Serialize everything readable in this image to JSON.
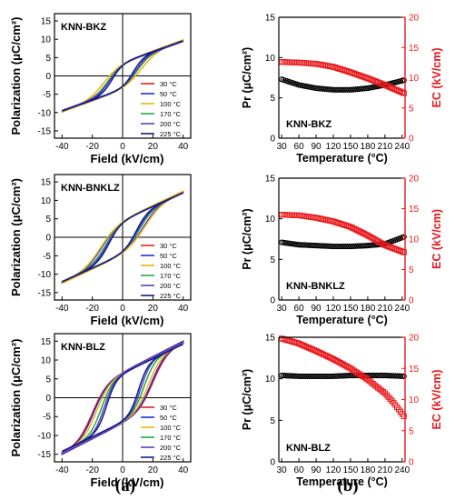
{
  "figure": {
    "panel_labels": [
      "(a)",
      "(b)"
    ]
  },
  "chart_data": [
    {
      "type": "line",
      "panel": "a",
      "row": 0,
      "annotation": "KNN-BKZ",
      "xlabel": "Field (kV/cm)",
      "ylabel": "Polarization (μC/cm²)",
      "xlim": [
        -45,
        45
      ],
      "ylim": [
        -17,
        17
      ],
      "xticks": [
        -40,
        -20,
        0,
        20,
        40
      ],
      "yticks": [
        -15,
        -10,
        -5,
        0,
        5,
        10,
        15
      ],
      "legend_position": "bottom-right",
      "curve_shape": {
        "tilt": 0.04,
        "hard": 0.65
      },
      "series": [
        {
          "name": "30 °C",
          "color": "#e02020",
          "Ps": 7.4,
          "Ec": 9.0,
          "Pmax": 9.7
        },
        {
          "name": "50 °C",
          "color": "#2a2ad0",
          "Ps": 7.5,
          "Ec": 8.6,
          "Pmax": 9.8
        },
        {
          "name": "100 °C",
          "color": "#f0b400",
          "Ps": 7.2,
          "Ec": 12.3,
          "Pmax": 9.8
        },
        {
          "name": "170 °C",
          "color": "#27a845",
          "Ps": 6.5,
          "Ec": 9.5,
          "Pmax": 9.5
        },
        {
          "name": "200 °C",
          "color": "#5a3fc0",
          "Ps": 6.3,
          "Ec": 8.5,
          "Pmax": 9.4
        },
        {
          "name": "225 °C",
          "color": "#101c8a",
          "Ps": 6.4,
          "Ec": 7.0,
          "Pmax": 9.6
        }
      ]
    },
    {
      "type": "line",
      "panel": "a",
      "row": 1,
      "annotation": "KNN-BNKLZ",
      "xlabel": "Field (kV/cm)",
      "ylabel": "Polarization (μC/cm²)",
      "xlim": [
        -45,
        45
      ],
      "ylim": [
        -17,
        17
      ],
      "xticks": [
        -40,
        -20,
        0,
        20,
        40
      ],
      "yticks": [
        -15,
        -10,
        -5,
        0,
        5,
        10,
        15
      ],
      "legend_position": "bottom-right",
      "curve_shape": {
        "tilt": 0.04,
        "hard": 0.6
      },
      "series": [
        {
          "name": "30 °C",
          "color": "#e02020",
          "Ps": 7.8,
          "Ec": 14.0,
          "Pmax": 12.3
        },
        {
          "name": "50 °C",
          "color": "#2a2ad0",
          "Ps": 7.8,
          "Ec": 13.5,
          "Pmax": 12.3
        },
        {
          "name": "100 °C",
          "color": "#f0b400",
          "Ps": 7.6,
          "Ec": 14.5,
          "Pmax": 12.4
        },
        {
          "name": "170 °C",
          "color": "#27a845",
          "Ps": 7.2,
          "Ec": 11.0,
          "Pmax": 12.0
        },
        {
          "name": "200 °C",
          "color": "#5a3fc0",
          "Ps": 7.0,
          "Ec": 10.0,
          "Pmax": 12.0
        },
        {
          "name": "225 °C",
          "color": "#101c8a",
          "Ps": 7.2,
          "Ec": 9.0,
          "Pmax": 12.1
        }
      ]
    },
    {
      "type": "line",
      "panel": "a",
      "row": 2,
      "annotation": "KNN-BLZ",
      "xlabel": "Field (kV/cm)",
      "ylabel": "Polarization (μC/cm²)",
      "xlim": [
        -45,
        45
      ],
      "ylim": [
        -17,
        17
      ],
      "xticks": [
        -40,
        -20,
        0,
        20,
        40
      ],
      "yticks": [
        -15,
        -10,
        -5,
        0,
        5,
        10,
        15
      ],
      "legend_position": "bottom-right",
      "curve_shape": {
        "tilt": 0.03,
        "hard": 0.35
      },
      "series": [
        {
          "name": "30 °C",
          "color": "#e02020",
          "Ps": 10.5,
          "Ec": 20.0,
          "Pmax": 14.8
        },
        {
          "name": "50 °C",
          "color": "#2a2ad0",
          "Ps": 10.4,
          "Ec": 19.0,
          "Pmax": 14.8
        },
        {
          "name": "100 °C",
          "color": "#f0b400",
          "Ps": 10.5,
          "Ec": 17.0,
          "Pmax": 14.6
        },
        {
          "name": "170 °C",
          "color": "#27a845",
          "Ps": 10.3,
          "Ec": 14.0,
          "Pmax": 14.5
        },
        {
          "name": "200 °C",
          "color": "#5a3fc0",
          "Ps": 10.5,
          "Ec": 12.0,
          "Pmax": 14.6
        },
        {
          "name": "225 °C",
          "color": "#101c8a",
          "Ps": 10.2,
          "Ec": 10.5,
          "Pmax": 14.2
        }
      ]
    },
    {
      "type": "scatter",
      "panel": "b",
      "row": 0,
      "annotation": "KNN-BKZ",
      "xlabel": "Temperature (°C)",
      "ylabel_left": "Pr (μC/cm²)",
      "ylabel_right": "EC (kV/cm)",
      "xlim": [
        25,
        245
      ],
      "xticks": [
        30,
        60,
        90,
        120,
        150,
        180,
        210,
        240
      ],
      "ylim_left": [
        0,
        15
      ],
      "yticks_left": [
        0,
        5,
        10,
        15
      ],
      "ylim_right": [
        0,
        20
      ],
      "yticks_right": [
        0,
        5,
        10,
        15,
        20
      ],
      "x_start": 30,
      "x_end": 244,
      "x_step": 3,
      "series": [
        {
          "name": "Pr",
          "axis": "left",
          "color": "#000000",
          "marker": "circle",
          "x": [
            30,
            60,
            90,
            120,
            150,
            180,
            210,
            244
          ],
          "values": [
            7.3,
            6.6,
            6.2,
            6.0,
            6.0,
            6.2,
            6.6,
            7.2
          ]
        },
        {
          "name": "EC",
          "axis": "right",
          "color": "#e8191c",
          "marker": "square",
          "x": [
            30,
            60,
            90,
            120,
            150,
            180,
            210,
            244
          ],
          "values": [
            12.6,
            12.5,
            12.3,
            11.8,
            10.9,
            9.9,
            8.8,
            7.4
          ]
        }
      ]
    },
    {
      "type": "scatter",
      "panel": "b",
      "row": 1,
      "annotation": "KNN-BNKLZ",
      "xlabel": "Temperature (°C)",
      "ylabel_left": "Pr (μC/cm²)",
      "ylabel_right": "EC (kV/cm)",
      "xlim": [
        25,
        245
      ],
      "xticks": [
        30,
        60,
        90,
        120,
        150,
        180,
        210,
        240
      ],
      "ylim_left": [
        0,
        15
      ],
      "yticks_left": [
        0,
        5,
        10,
        15
      ],
      "ylim_right": [
        0,
        20
      ],
      "yticks_right": [
        0,
        5,
        10,
        15,
        20
      ],
      "x_start": 30,
      "x_end": 244,
      "x_step": 3,
      "series": [
        {
          "name": "Pr",
          "axis": "left",
          "color": "#000000",
          "marker": "circle",
          "x": [
            30,
            60,
            90,
            120,
            150,
            180,
            210,
            244
          ],
          "values": [
            7.1,
            6.8,
            6.7,
            6.6,
            6.6,
            6.7,
            6.9,
            7.8
          ]
        },
        {
          "name": "EC",
          "axis": "right",
          "color": "#e8191c",
          "marker": "square",
          "x": [
            30,
            60,
            90,
            120,
            150,
            180,
            210,
            244
          ],
          "values": [
            14.0,
            13.9,
            13.5,
            12.9,
            12.0,
            10.6,
            9.0,
            7.8
          ]
        }
      ]
    },
    {
      "type": "scatter",
      "panel": "b",
      "row": 2,
      "annotation": "KNN-BLZ",
      "xlabel": "Temperature (°C)",
      "ylabel_left": "Pr (μC/cm²)",
      "ylabel_right": "EC (kV/cm)",
      "xlim": [
        25,
        245
      ],
      "xticks": [
        30,
        60,
        90,
        120,
        150,
        180,
        210,
        240
      ],
      "ylim_left": [
        0,
        15
      ],
      "yticks_left": [
        0,
        5,
        10,
        15
      ],
      "ylim_right": [
        0,
        20
      ],
      "yticks_right": [
        0,
        5,
        10,
        15,
        20
      ],
      "x_start": 30,
      "x_end": 244,
      "x_step": 3,
      "series": [
        {
          "name": "Pr",
          "axis": "left",
          "color": "#000000",
          "marker": "circle",
          "x": [
            30,
            60,
            90,
            120,
            150,
            180,
            210,
            244
          ],
          "values": [
            10.4,
            10.3,
            10.3,
            10.3,
            10.4,
            10.4,
            10.4,
            10.3
          ]
        },
        {
          "name": "EC",
          "axis": "right",
          "color": "#e8191c",
          "marker": "square",
          "x": [
            30,
            60,
            90,
            120,
            150,
            180,
            210,
            225,
            244
          ],
          "values": [
            19.8,
            19.0,
            17.8,
            16.5,
            15.0,
            13.2,
            11.0,
            9.5,
            7.2
          ]
        }
      ]
    }
  ]
}
